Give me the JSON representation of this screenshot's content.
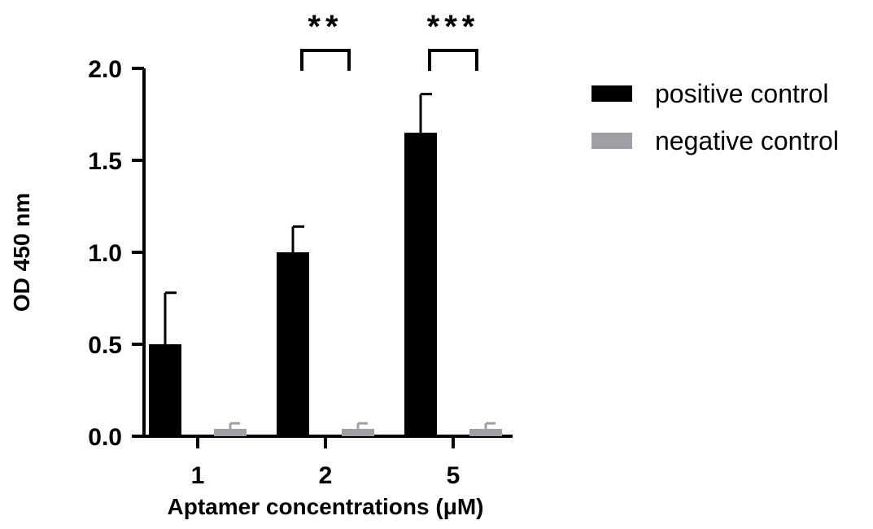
{
  "chart_data": {
    "type": "bar",
    "title": "",
    "xlabel": "Aptamer concentrations (μM)",
    "ylabel": "OD 450 nm",
    "categories": [
      "1",
      "2",
      "5"
    ],
    "ylim": [
      0,
      2.0
    ],
    "yticks": [
      "0.0",
      "0.5",
      "1.0",
      "1.5",
      "2.0"
    ],
    "grid": false,
    "legend_position": "top-right",
    "series": [
      {
        "name": "positive control",
        "color": "#000000",
        "values": [
          0.5,
          1.0,
          1.65
        ],
        "errors": [
          0.28,
          0.14,
          0.21
        ]
      },
      {
        "name": "negative control",
        "color": "#a0a0a4",
        "values": [
          0.04,
          0.04,
          0.04
        ],
        "errors": [
          0.03,
          0.03,
          0.03
        ]
      }
    ],
    "significance": [
      {
        "category_index": 1,
        "label": "**"
      },
      {
        "category_index": 2,
        "label": "***"
      }
    ]
  }
}
